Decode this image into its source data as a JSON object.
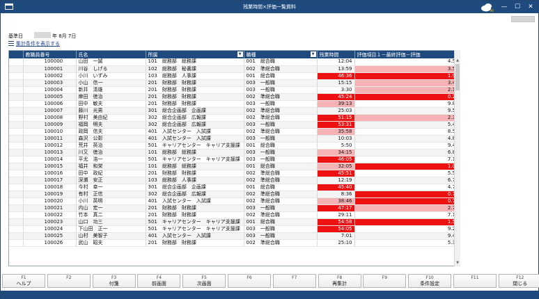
{
  "window": {
    "title": "残業時間×評価一覧資料",
    "logo_text": "AI",
    "controls": [
      "—",
      "☐",
      "✕"
    ]
  },
  "base_date": {
    "label": "基準日",
    "rest": "年 8月 7日"
  },
  "summary_link": "集計条件を表示する",
  "columns": [
    "教職員番号",
    "氏名",
    "所属",
    "職種",
    "残業時間",
    "評価項目１－最終評価－評価"
  ],
  "rows": [
    {
      "id": "100000",
      "name": "山田　一誠",
      "dept": "101　総務部　総務課",
      "job": "001　総合職",
      "ot": "12:04",
      "ot_hl": "",
      "ev": "4.50",
      "ev_hl": ""
    },
    {
      "id": "100001",
      "name": "川谷　しげる",
      "dept": "102　総務部　秘書課",
      "job": "002　準総合職",
      "ot": "13:59",
      "ot_hl": "",
      "ev": "3.50",
      "ev_hl": "pink"
    },
    {
      "id": "100002",
      "name": "小川　いずみ",
      "dept": "103　総務部　人事課",
      "job": "001　総合職",
      "ot": "46:36",
      "ot_hl": "red",
      "ev": "1.90",
      "ev_hl": "red"
    },
    {
      "id": "100003",
      "name": "小山　信一",
      "dept": "201　財務部　財務課",
      "job": "003　一般職",
      "ot": "15:15",
      "ot_hl": "",
      "ev": "3.40",
      "ev_hl": "pink"
    },
    {
      "id": "100004",
      "name": "新井　清雄",
      "dept": "201　財務部　財務課",
      "job": "003　一般職",
      "ot": "3:30",
      "ot_hl": "",
      "ev": "2.10",
      "ev_hl": "pink"
    },
    {
      "id": "100005",
      "name": "麻田　徳治",
      "dept": "201　財務部　財務課",
      "job": "002　準総合職",
      "ot": "45:24",
      "ot_hl": "red",
      "ev": "0.20",
      "ev_hl": "red"
    },
    {
      "id": "100006",
      "name": "田中　敏夫",
      "dept": "201　財務部　財務課",
      "job": "003　一般職",
      "ot": "39:13",
      "ot_hl": "pink",
      "ev": "9.80",
      "ev_hl": ""
    },
    {
      "id": "100007",
      "name": "藤川　光男",
      "dept": "301　総合企画部　企画課",
      "job": "002　準総合職",
      "ot": "25:03",
      "ot_hl": "",
      "ev": "9.50",
      "ev_hl": ""
    },
    {
      "id": "100008",
      "name": "野村　美由紀",
      "dept": "302　総合企画部　広報課",
      "job": "002　準総合職",
      "ot": "51:15",
      "ot_hl": "red",
      "ev": "2.30",
      "ev_hl": "pink"
    },
    {
      "id": "100009",
      "name": "福岡　明夫",
      "dept": "302　総合企画部　広報課",
      "job": "003　一般職",
      "ot": "53:31",
      "ot_hl": "red",
      "ev": "5.40",
      "ev_hl": ""
    },
    {
      "id": "100010",
      "name": "政岡　信夫",
      "dept": "401　入試センター　入試課",
      "job": "002　準総合職",
      "ot": "35:58",
      "ot_hl": "pink",
      "ev": "8.50",
      "ev_hl": ""
    },
    {
      "id": "100011",
      "name": "森沢　公彰",
      "dept": "401　入試センター　入試課",
      "job": "003　一般職",
      "ot": "10:03",
      "ot_hl": "",
      "ev": "4.80",
      "ev_hl": ""
    },
    {
      "id": "100012",
      "name": "荒井　英治",
      "dept": "501　キャリアセンター　キャリア支援課",
      "job": "001　総合職",
      "ot": "5:50",
      "ot_hl": "",
      "ev": "9.40",
      "ev_hl": ""
    },
    {
      "id": "100013",
      "name": "川又　徳治",
      "dept": "101　総務部　総務課",
      "job": "003　一般職",
      "ot": "34:15",
      "ot_hl": "pink",
      "ev": "6.80",
      "ev_hl": ""
    },
    {
      "id": "100014",
      "name": "平尤　浩一",
      "dept": "501　キャリアセンター　キャリア支援課",
      "job": "003　一般職",
      "ot": "46:05",
      "ot_hl": "red",
      "ev": "7.10",
      "ev_hl": ""
    },
    {
      "id": "100015",
      "name": "福井　和栄",
      "dept": "101　総務部　総務課",
      "job": "001　総合職",
      "ot": "32:05",
      "ot_hl": "pink",
      "ev": "1.00",
      "ev_hl": "red"
    },
    {
      "id": "100016",
      "name": "田中　政紀",
      "dept": "201　財務部　財務課",
      "job": "002　準総合職",
      "ot": "45:51",
      "ot_hl": "red",
      "ev": "5.50",
      "ev_hl": ""
    },
    {
      "id": "100017",
      "name": "深瀬　安正",
      "dept": "103　総務部　人事課",
      "job": "002　準総合職",
      "ot": "12:19",
      "ot_hl": "",
      "ev": "6.70",
      "ev_hl": ""
    },
    {
      "id": "100018",
      "name": "今村　幸一",
      "dept": "301　総合企画部　企画課",
      "job": "001　総合職",
      "ot": "45:40",
      "ot_hl": "red",
      "ev": "4.70",
      "ev_hl": ""
    },
    {
      "id": "100019",
      "name": "有村　正信",
      "dept": "302　総合企画部　広報課",
      "job": "002　準総合職",
      "ot": "8:36",
      "ot_hl": "",
      "ev": "0.70",
      "ev_hl": "red"
    },
    {
      "id": "100020",
      "name": "小川　英明",
      "dept": "401　入試センター　入試課",
      "job": "002　準総合職",
      "ot": "38:46",
      "ot_hl": "pink",
      "ev": "0.70",
      "ev_hl": "red"
    },
    {
      "id": "100021",
      "name": "内山　宏一",
      "dept": "201　財務部　財務課",
      "job": "003　一般職",
      "ot": "47:17",
      "ot_hl": "red",
      "ev": "2.70",
      "ev_hl": "pink"
    },
    {
      "id": "100022",
      "name": "竹本　真二",
      "dept": "201　財務部　財務課",
      "job": "002　準総合職",
      "ot": "29:11",
      "ot_hl": "",
      "ev": "7.10",
      "ev_hl": ""
    },
    {
      "id": "100023",
      "name": "山口　功三",
      "dept": "501　キャリアセンター　キャリア支援課",
      "job": "001　総合職",
      "ot": "54:58",
      "ot_hl": "red",
      "ev": "1.50",
      "ev_hl": "red"
    },
    {
      "id": "100024",
      "name": "下山田　正一",
      "dept": "501　キャリアセンター　キャリア支援課",
      "job": "003　一般職",
      "ot": "54:05",
      "ot_hl": "red",
      "ev": "9.20",
      "ev_hl": ""
    },
    {
      "id": "100025",
      "name": "山村　美智子",
      "dept": "401　入試センター　入試課",
      "job": "003　一般職",
      "ot": "7:01",
      "ot_hl": "",
      "ev": "9.40",
      "ev_hl": ""
    },
    {
      "id": "100026",
      "name": "武山　昭夫",
      "dept": "201　財務部　財務課",
      "job": "002　準総合職",
      "ot": "25:10",
      "ot_hl": "",
      "ev": "5.30",
      "ev_hl": ""
    }
  ],
  "fkeys": [
    {
      "key": "F1",
      "label": "ヘルプ"
    },
    {
      "key": "F2",
      "label": ""
    },
    {
      "key": "F3",
      "label": "付箋"
    },
    {
      "key": "F4",
      "label": "前画面"
    },
    {
      "key": "F5",
      "label": "次画面"
    },
    {
      "key": "F6",
      "label": ""
    },
    {
      "key": "F7",
      "label": ""
    },
    {
      "key": "F8",
      "label": "再集計"
    },
    {
      "key": "F9",
      "label": ""
    },
    {
      "key": "F10",
      "label": "条件設定"
    },
    {
      "key": "F11",
      "label": ""
    },
    {
      "key": "F12",
      "label": "閉じる"
    }
  ],
  "colors": {
    "header": "#1e4a7e",
    "red": "#ee1111",
    "pink": "#f5b3b6",
    "link": "#1a3f8a"
  },
  "icons": {
    "menu": "menu-icon",
    "logo": "cloud-logo-icon",
    "summary": "list-icon"
  }
}
